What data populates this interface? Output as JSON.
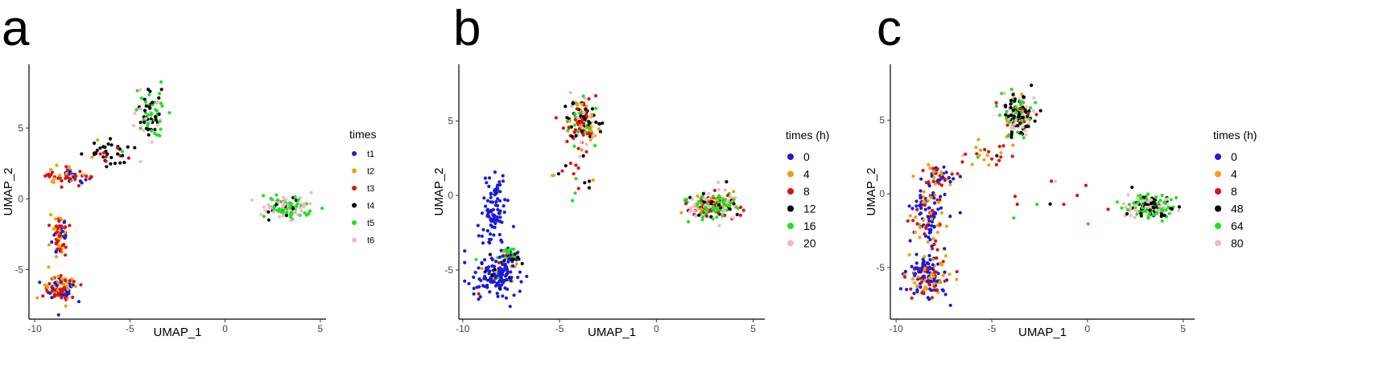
{
  "chart_data": [
    {
      "panel_letter": "a",
      "type": "scatter",
      "xlabel": "UMAP_1",
      "ylabel": "UMAP_2",
      "xlim": [
        -10.3,
        5.3
      ],
      "ylim": [
        -8.5,
        9.5
      ],
      "xticks": [
        -10,
        -5,
        0,
        5
      ],
      "yticks": [
        -5,
        0,
        5
      ],
      "grid": false,
      "legend": {
        "title": "times",
        "placement": "right"
      },
      "series": [
        {
          "name": "t1",
          "color": "#1a1adb"
        },
        {
          "name": "t2",
          "color": "#f2a007"
        },
        {
          "name": "t3",
          "color": "#dd1111"
        },
        {
          "name": "t4",
          "color": "#000000"
        },
        {
          "name": "t5",
          "color": "#22e022"
        },
        {
          "name": "t6",
          "color": "#f2b8c9"
        }
      ],
      "clusters": [
        {
          "cx": -8.6,
          "cy": -6.3,
          "sx": 0.75,
          "sy": 0.9,
          "n": 110,
          "w": [
            0.3,
            0.33,
            0.37,
            0,
            0,
            0
          ]
        },
        {
          "cx": -8.7,
          "cy": -2.6,
          "sx": 0.4,
          "sy": 1.3,
          "n": 70,
          "w": [
            0.28,
            0.36,
            0.36,
            0,
            0,
            0
          ]
        },
        {
          "cx": -8.2,
          "cy": 1.6,
          "sx": 0.9,
          "sy": 0.5,
          "n": 60,
          "w": [
            0.12,
            0.33,
            0.55,
            0,
            0,
            0
          ]
        },
        {
          "cx": -6.3,
          "cy": 3.2,
          "sx": 1.2,
          "sy": 0.9,
          "n": 40,
          "w": [
            0,
            0.06,
            0.2,
            0.7,
            0.04,
            0
          ]
        },
        {
          "cx": -3.9,
          "cy": 5.8,
          "sx": 0.7,
          "sy": 1.6,
          "n": 85,
          "w": [
            0,
            0,
            0,
            0.35,
            0.45,
            0.2
          ]
        },
        {
          "cx": 3.2,
          "cy": -0.6,
          "sx": 1.15,
          "sy": 0.9,
          "n": 115,
          "w": [
            0,
            0,
            0,
            0.22,
            0.4,
            0.38
          ]
        }
      ]
    },
    {
      "panel_letter": "b",
      "type": "scatter",
      "xlabel": "UMAP_1",
      "ylabel": "UMAP_2",
      "xlim": [
        -10.2,
        5.6
      ],
      "ylim": [
        -8.3,
        8.8
      ],
      "xticks": [
        -10,
        -5,
        0,
        5
      ],
      "yticks": [
        -5,
        0,
        5
      ],
      "grid": false,
      "legend": {
        "title": "times (h)",
        "placement": "right"
      },
      "series": [
        {
          "name": "0",
          "color": "#1a1adb"
        },
        {
          "name": "4",
          "color": "#f2a007"
        },
        {
          "name": "8",
          "color": "#dd1111"
        },
        {
          "name": "12",
          "color": "#000000"
        },
        {
          "name": "16",
          "color": "#22e022"
        },
        {
          "name": "20",
          "color": "#f2b8c9"
        }
      ],
      "clusters": [
        {
          "cx": -8.3,
          "cy": -5.3,
          "sx": 1.0,
          "sy": 1.3,
          "n": 150,
          "w": [
            0.85,
            0.03,
            0.03,
            0.03,
            0.06,
            0
          ]
        },
        {
          "cx": -8.4,
          "cy": -1.0,
          "sx": 0.6,
          "sy": 1.9,
          "n": 90,
          "w": [
            1,
            0,
            0,
            0,
            0,
            0
          ]
        },
        {
          "cx": -7.4,
          "cy": -4.0,
          "sx": 0.5,
          "sy": 0.7,
          "n": 40,
          "w": [
            0.2,
            0.1,
            0.1,
            0.2,
            0.35,
            0.05
          ]
        },
        {
          "cx": -3.8,
          "cy": 5.0,
          "sx": 0.8,
          "sy": 1.6,
          "n": 140,
          "w": [
            0,
            0.15,
            0.3,
            0.25,
            0.2,
            0.1
          ]
        },
        {
          "cx": -4.2,
          "cy": 1.0,
          "sx": 1.4,
          "sy": 1.8,
          "n": 18,
          "w": [
            0,
            0.2,
            0.3,
            0.25,
            0.15,
            0.1
          ]
        },
        {
          "cx": 2.9,
          "cy": -0.7,
          "sx": 1.1,
          "sy": 0.75,
          "n": 230,
          "w": [
            0,
            0.1,
            0.2,
            0.15,
            0.3,
            0.25
          ]
        }
      ]
    },
    {
      "panel_letter": "c",
      "type": "scatter",
      "xlabel": "UMAP_1",
      "ylabel": "UMAP_2",
      "xlim": [
        -10.3,
        5.6
      ],
      "ylim": [
        -8.5,
        8.8
      ],
      "xticks": [
        -10,
        -5,
        0,
        5
      ],
      "yticks": [
        -5,
        0,
        5
      ],
      "grid": false,
      "legend": {
        "title": "times (h)",
        "placement": "right"
      },
      "series": [
        {
          "name": "0",
          "color": "#1a1adb"
        },
        {
          "name": "4",
          "color": "#f2a007"
        },
        {
          "name": "8",
          "color": "#dd1111"
        },
        {
          "name": "48",
          "color": "#000000"
        },
        {
          "name": "64",
          "color": "#22e022"
        },
        {
          "name": "80",
          "color": "#f2b8c9"
        }
      ],
      "clusters": [
        {
          "cx": -8.3,
          "cy": -5.5,
          "sx": 1.0,
          "sy": 1.3,
          "n": 150,
          "w": [
            0.55,
            0.2,
            0.25,
            0,
            0,
            0
          ]
        },
        {
          "cx": -8.3,
          "cy": -1.5,
          "sx": 0.8,
          "sy": 1.8,
          "n": 120,
          "w": [
            0.5,
            0.25,
            0.25,
            0,
            0,
            0
          ]
        },
        {
          "cx": -7.8,
          "cy": 1.2,
          "sx": 0.8,
          "sy": 0.6,
          "n": 45,
          "w": [
            0.45,
            0.25,
            0.3,
            0,
            0,
            0
          ]
        },
        {
          "cx": -3.6,
          "cy": 5.4,
          "sx": 0.8,
          "sy": 1.4,
          "n": 140,
          "w": [
            0,
            0.05,
            0.1,
            0.35,
            0.3,
            0.2
          ]
        },
        {
          "cx": -5.5,
          "cy": 2.8,
          "sx": 1.2,
          "sy": 0.8,
          "n": 25,
          "w": [
            0,
            0.4,
            0.4,
            0.1,
            0.05,
            0.05
          ]
        },
        {
          "cx": -1.8,
          "cy": -0.5,
          "sx": 2.2,
          "sy": 1.6,
          "n": 12,
          "w": [
            0,
            0.1,
            0.5,
            0.1,
            0.2,
            0.1
          ]
        },
        {
          "cx": 3.2,
          "cy": -0.8,
          "sx": 1.1,
          "sy": 0.7,
          "n": 190,
          "w": [
            0,
            0,
            0,
            0.35,
            0.4,
            0.25
          ]
        }
      ]
    }
  ]
}
